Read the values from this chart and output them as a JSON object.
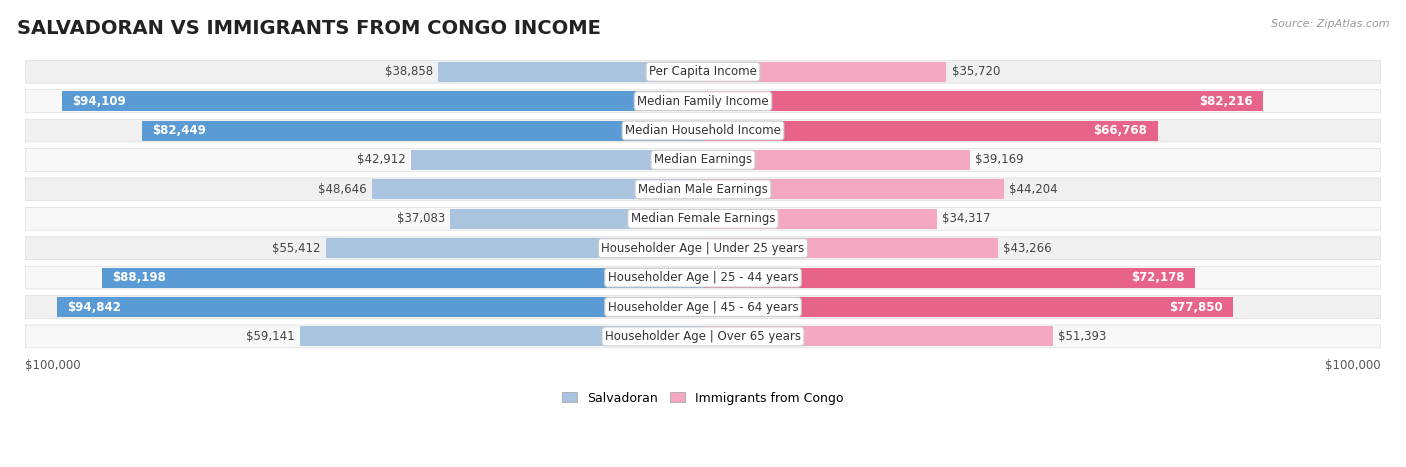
{
  "title": "SALVADORAN VS IMMIGRANTS FROM CONGO INCOME",
  "source": "Source: ZipAtlas.com",
  "max_value": 100000,
  "categories": [
    "Per Capita Income",
    "Median Family Income",
    "Median Household Income",
    "Median Earnings",
    "Median Male Earnings",
    "Median Female Earnings",
    "Householder Age | Under 25 years",
    "Householder Age | 25 - 44 years",
    "Householder Age | 45 - 64 years",
    "Householder Age | Over 65 years"
  ],
  "salvadoran": [
    38858,
    94109,
    82449,
    42912,
    48646,
    37083,
    55412,
    88198,
    94842,
    59141
  ],
  "congo": [
    35720,
    82216,
    66768,
    39169,
    44204,
    34317,
    43266,
    72178,
    77850,
    51393
  ],
  "salvadoran_labels": [
    "$38,858",
    "$94,109",
    "$82,449",
    "$42,912",
    "$48,646",
    "$37,083",
    "$55,412",
    "$88,198",
    "$94,842",
    "$59,141"
  ],
  "congo_labels": [
    "$35,720",
    "$82,216",
    "$66,768",
    "$39,169",
    "$44,204",
    "$34,317",
    "$43,266",
    "$72,178",
    "$77,850",
    "$51,393"
  ],
  "salvadoran_color_light": "#aac4e0",
  "salvadoran_color_dark": "#5b9bd5",
  "congo_color_light": "#f4a7c0",
  "congo_color_dark": "#e8638a",
  "row_colors": [
    "#f0f0f0",
    "#f8f8f8",
    "#f0f0f0",
    "#f8f8f8",
    "#f0f0f0",
    "#f8f8f8",
    "#f0f0f0",
    "#f8f8f8",
    "#f0f0f0",
    "#f8f8f8"
  ],
  "label_fontsize": 8.5,
  "title_fontsize": 14,
  "legend_fontsize": 9,
  "large_threshold": 60000
}
